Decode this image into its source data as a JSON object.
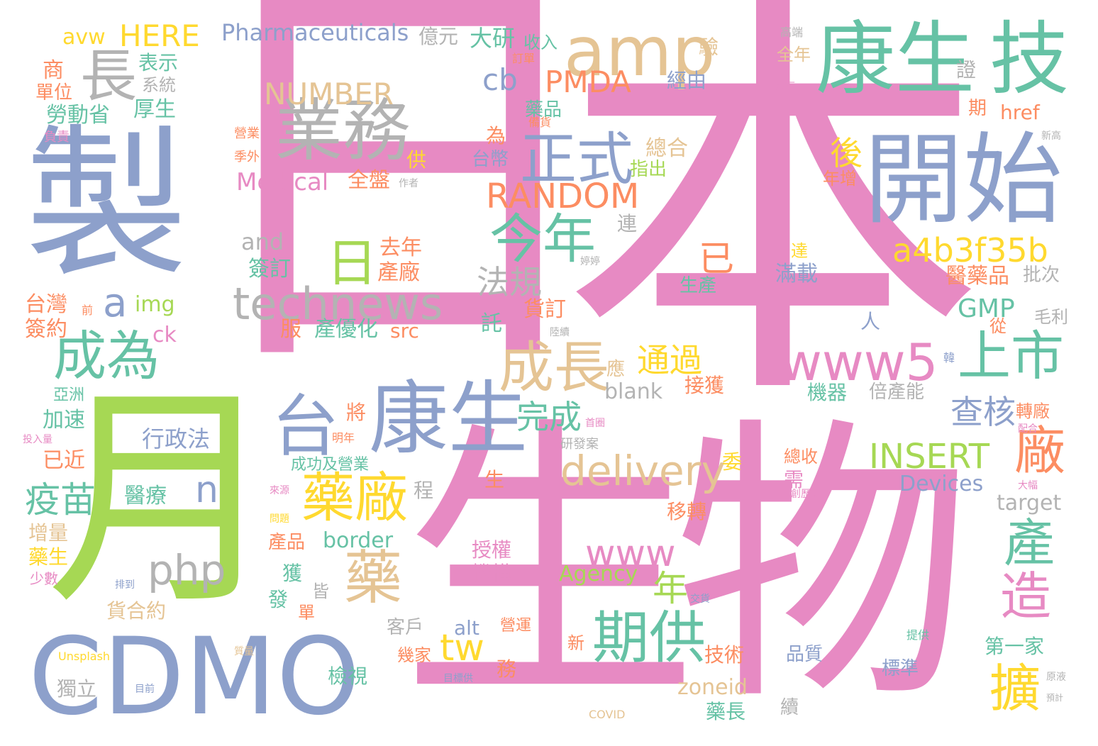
{
  "palette": {
    "pink": "#e78ac3",
    "blue": "#8da0cb",
    "green": "#66c2a5",
    "orange": "#fc8d62",
    "lime": "#a6d854",
    "yellow": "#ffd92f",
    "tan": "#e5c494",
    "gray": "#b3b3b3"
  },
  "words": {
    "ri": "日",
    "ben": "本",
    "sheng": "生",
    "wu": "物",
    "yue": "月",
    "zhi": "製",
    "cdmo": "CDMO",
    "kangsheng_top": "康生",
    "ji": "技",
    "kaishi": "開始",
    "amp": "amp",
    "yewu": "業務",
    "zhang": "長",
    "zhengshi": "正式",
    "kangsheng_mid": "康生",
    "tai": "台",
    "technews": "technews",
    "jinnian": "今年",
    "chengzhang": "成長",
    "chengwei": "成為",
    "www5": "www5",
    "shangshi": "上市",
    "ri_small": "日",
    "yaochang": "藥廠",
    "yao": "藥",
    "qigong": "期供",
    "chan": "產",
    "zao": "造",
    "kuo": "擴",
    "chang": "廠",
    "delivery": "delivery",
    "random": "RANDOM",
    "a4b3f35b": "a4b3f35b",
    "insert": "INSERT",
    "php": "php",
    "www": "www",
    "number": "NUMBER",
    "pmda": "PMDA",
    "cb": "cb",
    "a": "a",
    "n": "n",
    "tw": "tw",
    "nian": "年",
    "yi": "已",
    "houhou": "後",
    "tongguo": "通過",
    "wancheng": "完成",
    "fagui": "法規",
    "chahe": "查核",
    "gmp": "GMP",
    "yimiao": "疫苗",
    "here": "HERE",
    "pharmaceuticals": "Pharmaceuticals",
    "medical": "Medical",
    "devices": "Devices",
    "agency": "Agency",
    "avw": "avw",
    "and": "and",
    "blank": "blank",
    "target": "target",
    "zoneid": "zoneid",
    "border": "border",
    "img": "img",
    "src": "src",
    "ck": "ck",
    "href": "href",
    "alt": "alt",
    "unsplash": "Unsplash",
    "covid": "COVID",
    "xingzhengfa": "行政法",
    "yiliao": "醫療",
    "daiyan": "大研",
    "shouru": "收入",
    "yiyuan": "億元",
    "biaoshi": "表示",
    "xitong": "系統",
    "shang": "商",
    "danwei": "單位",
    "laodongsheng": "勞動省",
    "housheng": "厚生",
    "yingye": "營業",
    "jiwai": "季外",
    "fuze": "負責",
    "quanpan": "全盤",
    "zuozhe": "作者",
    "gong": "供",
    "wei": "為",
    "taibi": "台幣",
    "yaopin": "藥品",
    "beihuo": "備貨",
    "dingdan": "訂單",
    "zonghe": "總合",
    "zhichu": "指出",
    "lian": "連",
    "yan": "驗",
    "jingyou": "經由",
    "quannian": "全年",
    "gaoduan": "高端",
    "meiyou": "沒有",
    "zheng": "證",
    "qi": "期",
    "xingao": "新高",
    "nianzeng": "年增",
    "qunian": "去年",
    "chanchang": "產廠",
    "qianding": "簽訂",
    "taiwan": "台灣",
    "qian": "前",
    "qianyue": "簽約",
    "fu": "服",
    "chanyouhua": "產優化",
    "tuo": "託",
    "huoding": "貨訂",
    "luxu": "陸續",
    "da": "達",
    "tingting": "婷婷",
    "manzai": "滿載",
    "shengchan": "生產",
    "yiyaopin": "醫藥品",
    "pici": "批次",
    "maoli": "毛利",
    "cong": "從",
    "ren": "人",
    "ying": "應",
    "jiehuo": "接獲",
    "jiqi": "機器",
    "beichanneng": "倍產能",
    "han": "韓",
    "zhuanchang": "轉廠",
    "peihe": "配合",
    "yazhou": "亞洲",
    "jiasu": "加速",
    "touruliang": "投入量",
    "yijin": "已近",
    "jiang": "將",
    "mingnian": "明年",
    "shouliang": "首圈",
    "yanfaan": "研發案",
    "chenggong": "成功及營業",
    "zongshou": "總收",
    "wei_commit": "委",
    "xu": "需",
    "sheng_small": "生",
    "cheng": "程",
    "dafu": "大幅",
    "laiyuan": "來源",
    "chuangli": "創歷史",
    "wenti": "問題",
    "yizhuan": "移轉",
    "zengliang": "增量",
    "yaosheng": "藥生",
    "shaoshu": "少數",
    "paidao": "排到",
    "chanpin": "產品",
    "shouquan": "授權",
    "jigou": "機構",
    "huo": "獲",
    "jie": "皆",
    "fa": "發",
    "dan": "單",
    "huohe": "貨合約",
    "kehu": "客戶",
    "yingyun": "營運",
    "jiaoyi": "交貨",
    "jishu": "技術",
    "xin": "新",
    "diyijia": "第一家",
    "tigong": "提供",
    "jijia": "幾家",
    "wu_work": "務",
    "zhiliang": "品質",
    "biaozhun": "標準",
    "jianshi": "檢視",
    "xu_cont": "續",
    "yaozhang": "藥長",
    "duli": "獨立",
    "mubiao": "目前",
    "mubiaogong": "目標供",
    "yuanye": "原液",
    "yuji": "預計",
    "zhiliang2": "質量"
  }
}
